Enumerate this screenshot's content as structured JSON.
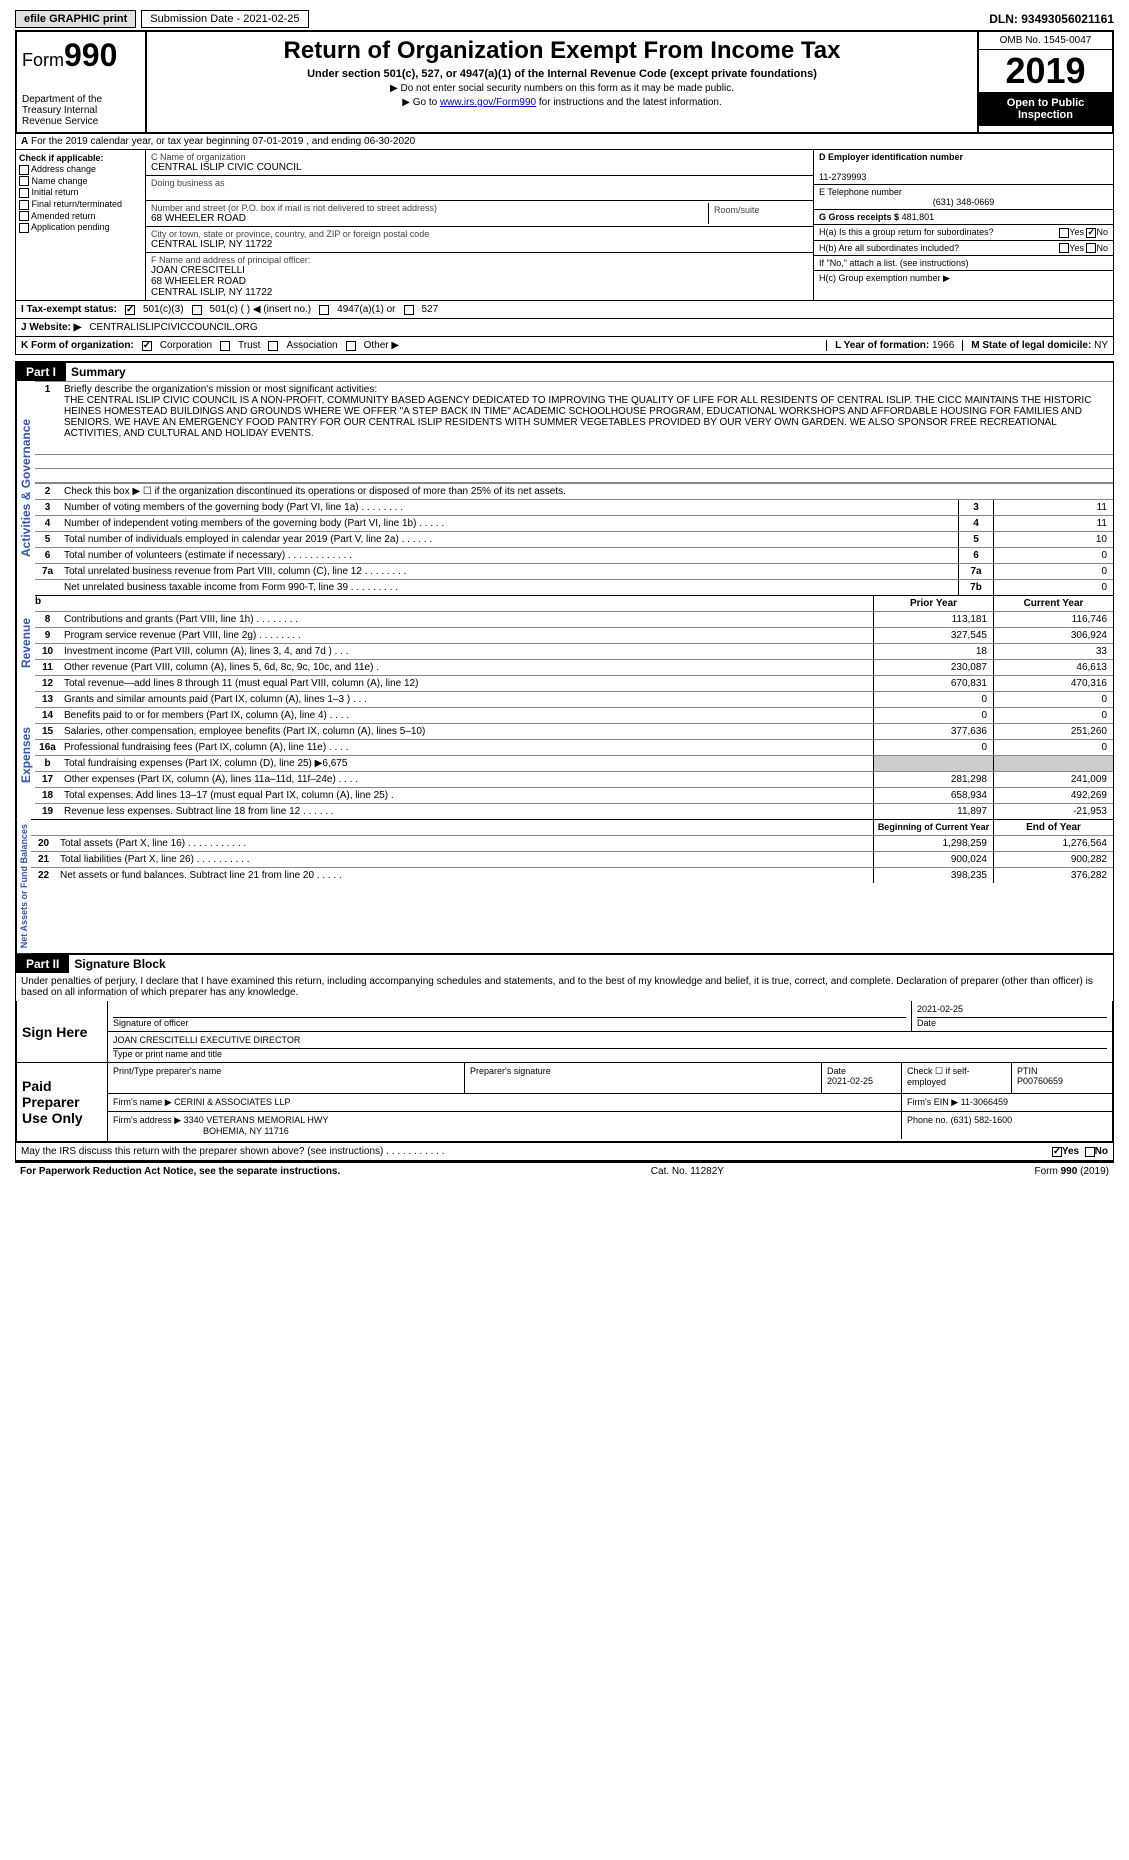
{
  "top": {
    "efile_btn": "efile GRAPHIC print",
    "submission": "Submission Date - 2021-02-25",
    "dln": "DLN: 93493056021161"
  },
  "header": {
    "form_word": "Form",
    "form_num": "990",
    "dept": "Department of the Treasury Internal Revenue Service",
    "title": "Return of Organization Exempt From Income Tax",
    "sub": "Under section 501(c), 527, or 4947(a)(1) of the Internal Revenue Code (except private foundations)",
    "note1": "▶ Do not enter social security numbers on this form as it may be made public.",
    "note2_pre": "▶ Go to ",
    "note2_link": "www.irs.gov/Form990",
    "note2_post": " for instructions and the latest information.",
    "omb": "OMB No. 1545-0047",
    "year": "2019",
    "inspection": "Open to Public Inspection"
  },
  "rowA": "For the 2019 calendar year, or tax year beginning 07-01-2019   , and ending 06-30-2020",
  "colB": {
    "title": "Check if applicable:",
    "opts": [
      "Address change",
      "Name change",
      "Initial return",
      "Final return/terminated",
      "Amended return",
      "Application pending"
    ]
  },
  "colC": {
    "name_lbl": "C Name of organization",
    "name_val": "CENTRAL ISLIP CIVIC COUNCIL",
    "dba_lbl": "Doing business as",
    "dba_val": "",
    "addr_lbl": "Number and street (or P.O. box if mail is not delivered to street address)",
    "addr_val": "68 WHEELER ROAD",
    "room_lbl": "Room/suite",
    "city_lbl": "City or town, state or province, country, and ZIP or foreign postal code",
    "city_val": "CENTRAL ISLIP, NY  11722",
    "officer_lbl": "F Name and address of principal officer:",
    "officer_name": "JOAN CRESCITELLI",
    "officer_addr1": "68 WHEELER ROAD",
    "officer_addr2": "CENTRAL ISLIP, NY  11722"
  },
  "colD": {
    "ein_lbl": "D Employer identification number",
    "ein_val": "11-2739993",
    "phone_lbl": "E Telephone number",
    "phone_val": "(631) 348-0669",
    "gross_lbl": "G Gross receipts $",
    "gross_val": "481,801",
    "ha_lbl": "H(a)  Is this a group return for subordinates?",
    "hb_lbl": "H(b)  Are all subordinates included?",
    "hb_note": "If \"No,\" attach a list. (see instructions)",
    "hc_lbl": "H(c)  Group exemption number ▶",
    "yes": "Yes",
    "no": "No"
  },
  "taxStatus": {
    "lbl": "I   Tax-exempt status:",
    "opt1": "501(c)(3)",
    "opt2": "501(c) (   ) ◀ (insert no.)",
    "opt3": "4947(a)(1) or",
    "opt4": "527"
  },
  "website": {
    "lbl": "J  Website: ▶",
    "val": "CENTRALISLIPCIVICCOUNCIL.ORG"
  },
  "orgForm": {
    "lbl": "K Form of organization:",
    "opts": [
      "Corporation",
      "Trust",
      "Association",
      "Other ▶"
    ],
    "year_lbl": "L Year of formation:",
    "year_val": "1966",
    "state_lbl": "M State of legal domicile:",
    "state_val": "NY"
  },
  "part1": {
    "tag": "Part I",
    "title": "Summary",
    "vert1": "Activities & Governance",
    "vert2": "Revenue",
    "vert3": "Expenses",
    "vert4": "Net Assets or Fund Balances",
    "line1_lbl": "Briefly describe the organization's mission or most significant activities:",
    "mission": "THE CENTRAL ISLIP CIVIC COUNCIL IS A NON-PROFIT, COMMUNITY BASED AGENCY DEDICATED TO IMPROVING THE QUALITY OF LIFE FOR ALL RESIDENTS OF CENTRAL ISLIP. THE CICC MAINTAINS THE HISTORIC HEINES HOMESTEAD BUILDINGS AND GROUNDS WHERE WE OFFER \"A STEP BACK IN TIME\" ACADEMIC SCHOOLHOUSE PROGRAM, EDUCATIONAL WORKSHOPS AND AFFORDABLE HOUSING FOR FAMILIES AND SENIORS. WE HAVE AN EMERGENCY FOOD PANTRY FOR OUR CENTRAL ISLIP RESIDENTS WITH SUMMER VEGETABLES PROVIDED BY OUR VERY OWN GARDEN. WE ALSO SPONSOR FREE RECREATIONAL ACTIVITIES, AND CULTURAL AND HOLIDAY EVENTS.",
    "line2": "Check this box ▶ ☐ if the organization discontinued its operations or disposed of more than 25% of its net assets.",
    "lines_gov": [
      {
        "n": "3",
        "d": "Number of voting members of the governing body (Part VI, line 1a)  .   .   .   .   .   .   .   .",
        "box": "3",
        "v": "11"
      },
      {
        "n": "4",
        "d": "Number of independent voting members of the governing body (Part VI, line 1b)   .   .   .   .   .",
        "box": "4",
        "v": "11"
      },
      {
        "n": "5",
        "d": "Total number of individuals employed in calendar year 2019 (Part V, line 2a)   .   .   .   .   .   .",
        "box": "5",
        "v": "10"
      },
      {
        "n": "6",
        "d": "Total number of volunteers (estimate if necessary)   .   .   .   .   .   .   .   .   .   .   .   .",
        "box": "6",
        "v": "0"
      },
      {
        "n": "7a",
        "d": "Total unrelated business revenue from Part VIII, column (C), line 12   .   .   .   .   .   .   .   .",
        "box": "7a",
        "v": "0"
      },
      {
        "n": "",
        "d": "Net unrelated business taxable income from Form 990-T, line 39   .   .   .   .   .   .   .   .   .",
        "box": "7b",
        "v": "0"
      }
    ],
    "col_py": "Prior Year",
    "col_cy": "Current Year",
    "lines_rev": [
      {
        "n": "8",
        "d": "Contributions and grants (Part VIII, line 1h)   .   .   .   .   .   .   .   .",
        "py": "113,181",
        "cy": "116,746"
      },
      {
        "n": "9",
        "d": "Program service revenue (Part VIII, line 2g)   .   .   .   .   .   .   .   .",
        "py": "327,545",
        "cy": "306,924"
      },
      {
        "n": "10",
        "d": "Investment income (Part VIII, column (A), lines 3, 4, and 7d )   .   .   .",
        "py": "18",
        "cy": "33"
      },
      {
        "n": "11",
        "d": "Other revenue (Part VIII, column (A), lines 5, 6d, 8c, 9c, 10c, and 11e)   .",
        "py": "230,087",
        "cy": "46,613"
      },
      {
        "n": "12",
        "d": "Total revenue—add lines 8 through 11 (must equal Part VIII, column (A), line 12)",
        "py": "670,831",
        "cy": "470,316"
      }
    ],
    "lines_exp": [
      {
        "n": "13",
        "d": "Grants and similar amounts paid (Part IX, column (A), lines 1–3 )   .   .   .",
        "py": "0",
        "cy": "0"
      },
      {
        "n": "14",
        "d": "Benefits paid to or for members (Part IX, column (A), line 4)   .   .   .   .",
        "py": "0",
        "cy": "0"
      },
      {
        "n": "15",
        "d": "Salaries, other compensation, employee benefits (Part IX, column (A), lines 5–10)",
        "py": "377,636",
        "cy": "251,260"
      },
      {
        "n": "16a",
        "d": "Professional fundraising fees (Part IX, column (A), line 11e)   .   .   .   .",
        "py": "0",
        "cy": "0"
      },
      {
        "n": "b",
        "d": "Total fundraising expenses (Part IX, column (D), line 25) ▶6,675",
        "py": "grey",
        "cy": "grey"
      },
      {
        "n": "17",
        "d": "Other expenses (Part IX, column (A), lines 11a–11d, 11f–24e)   .   .   .   .",
        "py": "281,298",
        "cy": "241,009"
      },
      {
        "n": "18",
        "d": "Total expenses. Add lines 13–17 (must equal Part IX, column (A), line 25)   .",
        "py": "658,934",
        "cy": "492,269"
      },
      {
        "n": "19",
        "d": "Revenue less expenses. Subtract line 18 from line 12   .   .   .   .   .   .",
        "py": "11,897",
        "cy": "-21,953"
      }
    ],
    "col_bcy": "Beginning of Current Year",
    "col_eoy": "End of Year",
    "lines_net": [
      {
        "n": "20",
        "d": "Total assets (Part X, line 16)   .   .   .   .   .   .   .   .   .   .   .",
        "py": "1,298,259",
        "cy": "1,276,564"
      },
      {
        "n": "21",
        "d": "Total liabilities (Part X, line 26)   .   .   .   .   .   .   .   .   .   .",
        "py": "900,024",
        "cy": "900,282"
      },
      {
        "n": "22",
        "d": "Net assets or fund balances. Subtract line 21 from line 20   .   .   .   .   .",
        "py": "398,235",
        "cy": "376,282"
      }
    ]
  },
  "part2": {
    "tag": "Part II",
    "title": "Signature Block",
    "perjury": "Under penalties of perjury, I declare that I have examined this return, including accompanying schedules and statements, and to the best of my knowledge and belief, it is true, correct, and complete. Declaration of preparer (other than officer) is based on all information of which preparer has any knowledge.",
    "sign_here": "Sign Here",
    "sig_officer_lbl": "Signature of officer",
    "sig_date": "2021-02-25",
    "sig_date_lbl": "Date",
    "sig_name": "JOAN CRESCITELLI  EXECUTIVE DIRECTOR",
    "sig_name_lbl": "Type or print name and title",
    "paid_prep": "Paid Preparer Use Only",
    "prep_name_lbl": "Print/Type preparer's name",
    "prep_sig_lbl": "Preparer's signature",
    "prep_date_lbl": "Date",
    "prep_date": "2021-02-25",
    "prep_check_lbl": "Check ☐ if self-employed",
    "ptin_lbl": "PTIN",
    "ptin": "P00760659",
    "firm_name_lbl": "Firm's name    ▶",
    "firm_name": "CERINI & ASSOCIATES LLP",
    "firm_ein_lbl": "Firm's EIN ▶",
    "firm_ein": "11-3066459",
    "firm_addr_lbl": "Firm's address ▶",
    "firm_addr1": "3340 VETERANS MEMORIAL HWY",
    "firm_addr2": "BOHEMIA, NY  11716",
    "firm_phone_lbl": "Phone no.",
    "firm_phone": "(631) 582-1600",
    "discuss": "May the IRS discuss this return with the preparer shown above? (see instructions)   .   .   .   .   .   .   .   .   .   .   .",
    "yes": "Yes",
    "no": "No"
  },
  "footer": {
    "left": "For Paperwork Reduction Act Notice, see the separate instructions.",
    "center": "Cat. No. 11282Y",
    "right": "Form 990 (2019)"
  }
}
